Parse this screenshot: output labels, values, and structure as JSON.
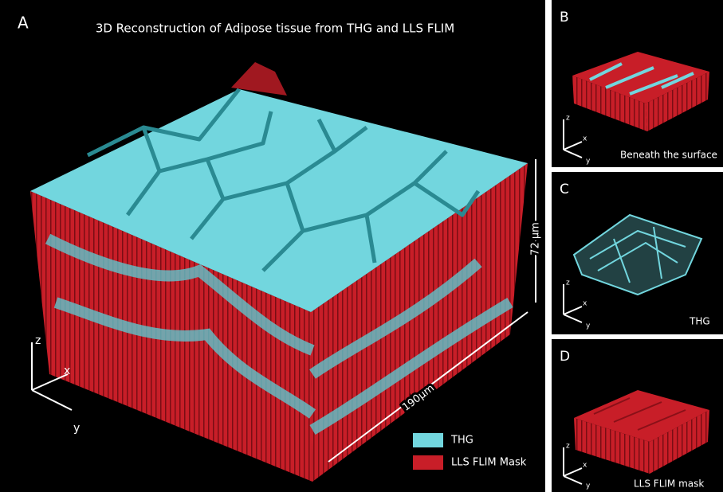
{
  "panel_a": {
    "label": "A",
    "title": "3D Reconstruction of Adipose tissue from THG and LLS FLIM",
    "axes": {
      "z": "z",
      "x": "x",
      "y": "y"
    },
    "scale_z": "72 µm",
    "scale_xy": "190µm",
    "legend": [
      {
        "name": "THG",
        "color": "#72d6de"
      },
      {
        "name": "LLS FLIM Mask",
        "color": "#c81e28"
      }
    ]
  },
  "panel_b": {
    "label": "B",
    "caption": "Beneath the surface",
    "axes": {
      "z": "z",
      "x": "x",
      "y": "y"
    }
  },
  "panel_c": {
    "label": "C",
    "caption": "THG",
    "axes": {
      "z": "z",
      "x": "x",
      "y": "y"
    }
  },
  "panel_d": {
    "label": "D",
    "caption": "LLS FLIM mask",
    "axes": {
      "z": "z",
      "x": "x",
      "y": "y"
    }
  }
}
